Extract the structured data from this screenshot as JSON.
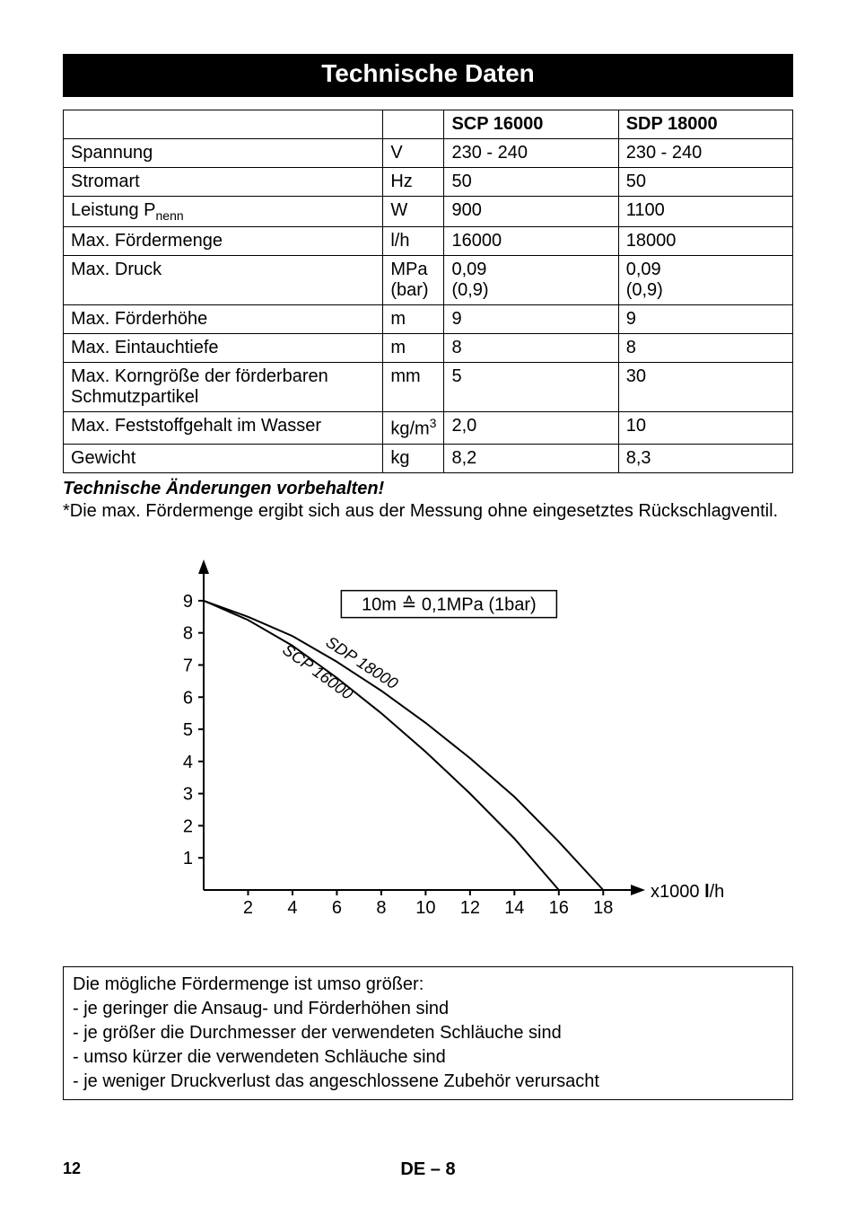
{
  "header": {
    "title": "Technische Daten"
  },
  "table": {
    "head": {
      "c3": "SCP 16000",
      "c4": "SDP 18000"
    },
    "rows": [
      {
        "label": "Spannung",
        "unit": "V",
        "v1": "230 - 240",
        "v2": "230 - 240"
      },
      {
        "label_html": "Leistung P<span class=\"sub\">nenn</span>",
        "label": "Leistung Pnenn",
        "unit": "W",
        "v1": "900",
        "v2": "1100",
        "prev": {
          "label": "Stromart",
          "unit": "Hz",
          "v1": "50",
          "v2": "50"
        }
      },
      {
        "label": "Max. Fördermenge",
        "unit": "l/h",
        "v1": "16000",
        "v2": "18000"
      },
      {
        "label": "Max. Druck",
        "unit": "MPa\n(bar)",
        "v1": "0,09\n(0,9)",
        "v2": "0,09\n(0,9)"
      },
      {
        "label": "Max. Förderhöhe",
        "unit": "m",
        "v1": "9",
        "v2": "9"
      },
      {
        "label": "Max. Eintauchtiefe",
        "unit": "m",
        "v1": "8",
        "v2": "8"
      },
      {
        "label": "Max. Korngröße der förderbaren Schmutzpartikel",
        "unit": "mm",
        "v1": "5",
        "v2": "30"
      },
      {
        "label": "Max. Feststoffgehalt im Wasser",
        "unit_html": "kg/m<span class=\"sup\">3</span>",
        "unit": "kg/m3",
        "v1": "2,0",
        "v2": "10"
      },
      {
        "label": "Gewicht",
        "unit": "kg",
        "v1": "8,2",
        "v2": "8,3"
      }
    ]
  },
  "notes": {
    "bold": "Technische Änderungen vorbehalten!",
    "star": "*Die max. Fördermenge ergibt sich aus der Messung ohne eingesetztes Rückschlagventil."
  },
  "chart": {
    "type": "line",
    "x_unit_label": "x1000 l/h",
    "y_unit_label": "m",
    "legend_note": "10m ≙ 0,1MPa (1bar)",
    "xlim": [
      0,
      19
    ],
    "ylim": [
      0,
      9.5
    ],
    "xticks": [
      2,
      4,
      6,
      8,
      10,
      12,
      14,
      16,
      18
    ],
    "yticks": [
      1,
      2,
      3,
      4,
      5,
      6,
      7,
      8,
      9
    ],
    "axis_color": "#000000",
    "background_color": "#ffffff",
    "line_width": 2,
    "series": [
      {
        "name": "SCP 16000",
        "color": "#000000",
        "points": [
          [
            0,
            9
          ],
          [
            2,
            8.4
          ],
          [
            4,
            7.6
          ],
          [
            6,
            6.6
          ],
          [
            8,
            5.5
          ],
          [
            10,
            4.3
          ],
          [
            12,
            3.0
          ],
          [
            14,
            1.6
          ],
          [
            16,
            0
          ]
        ]
      },
      {
        "name": "SDP 18000",
        "color": "#000000",
        "points": [
          [
            0,
            9
          ],
          [
            2,
            8.5
          ],
          [
            4,
            7.9
          ],
          [
            6,
            7.1
          ],
          [
            8,
            6.2
          ],
          [
            10,
            5.2
          ],
          [
            12,
            4.1
          ],
          [
            14,
            2.9
          ],
          [
            16,
            1.5
          ],
          [
            18,
            0
          ]
        ]
      }
    ],
    "label_font_size": 20,
    "tick_font_size": 20,
    "series_label_font_size": 18
  },
  "infobox": {
    "lines": [
      "Die mögliche Fördermenge ist umso größer:",
      "- je geringer die Ansaug- und Förderhöhen sind",
      "- je größer die Durchmesser der verwendeten Schläuche sind",
      "- umso kürzer die verwendeten Schläuche sind",
      "- je weniger Druckverlust das angeschlossene Zubehör verursacht"
    ]
  },
  "footer": {
    "page_left": "12",
    "page_center_prefix": "DE",
    "page_center_dash": "–",
    "page_center_num": "8"
  }
}
